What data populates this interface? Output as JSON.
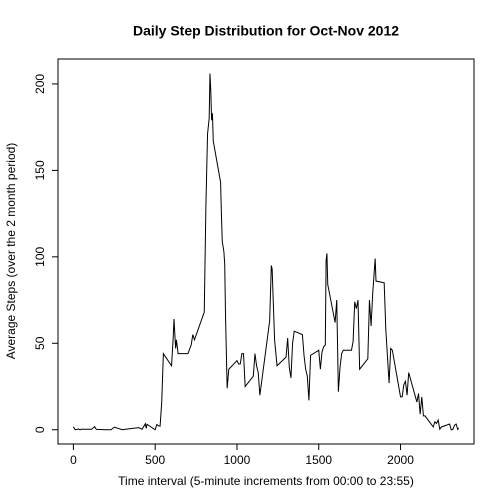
{
  "chart_data": {
    "type": "line",
    "title": "Daily Step Distribution for Oct-Nov 2012",
    "x_label": "Time interval (5-minute increments from 00:00 to 23:55)",
    "y_label": "Average Steps (over the 2 month period)",
    "x": [
      0,
      10,
      20,
      30,
      40,
      50,
      100,
      110,
      130,
      140,
      200,
      230,
      250,
      300,
      330,
      400,
      420,
      440,
      445,
      450,
      500,
      510,
      520,
      530,
      540,
      550,
      600,
      610,
      615,
      625,
      630,
      640,
      700,
      720,
      730,
      740,
      800,
      810,
      820,
      830,
      835,
      840,
      845,
      850,
      855,
      900,
      905,
      910,
      920,
      925,
      930,
      940,
      950,
      1000,
      1010,
      1020,
      1030,
      1040,
      1050,
      1100,
      1110,
      1120,
      1130,
      1140,
      1200,
      1210,
      1215,
      1230,
      1245,
      1300,
      1310,
      1320,
      1330,
      1340,
      1350,
      1400,
      1410,
      1420,
      1430,
      1440,
      1450,
      1500,
      1510,
      1520,
      1530,
      1540,
      1545,
      1550,
      1555,
      1600,
      1610,
      1620,
      1630,
      1640,
      1650,
      1700,
      1710,
      1720,
      1730,
      1740,
      1750,
      1800,
      1810,
      1820,
      1830,
      1845,
      1850,
      1900,
      1910,
      1930,
      1940,
      1950,
      2000,
      2010,
      2020,
      2030,
      2040,
      2050,
      2100,
      2110,
      2120,
      2130,
      2140,
      2150,
      2200,
      2210,
      2220,
      2230,
      2240,
      2250,
      2300,
      2310,
      2320,
      2330,
      2340,
      2350,
      2355
    ],
    "series": [
      {
        "name": "steps",
        "color": "#000000",
        "values": [
          1.7,
          0.1,
          0.1,
          0.5,
          0,
          0.3,
          0.3,
          0.2,
          1.8,
          0.2,
          0,
          0,
          1.5,
          0,
          0.4,
          1.2,
          0.3,
          3.5,
          0.8,
          3.1,
          0,
          3,
          2.3,
          2.1,
          16,
          44,
          37,
          53,
          64,
          47,
          52,
          44,
          44,
          49,
          55,
          52,
          68,
          129,
          171,
          180,
          206,
          196,
          179,
          183,
          167,
          143,
          124,
          109,
          103,
          96,
          66,
          24,
          35,
          40,
          38,
          38,
          44,
          44,
          25,
          31,
          44,
          37,
          33,
          20,
          63,
          95,
          93,
          52,
          37,
          42,
          53,
          36,
          30,
          50,
          57,
          55,
          43,
          35,
          31,
          17,
          43,
          46,
          35,
          45,
          48,
          49,
          98,
          102,
          84,
          62,
          75,
          22,
          36,
          44,
          46,
          46,
          51,
          74,
          70,
          75,
          35,
          41,
          75,
          60,
          79,
          99,
          86,
          85,
          58,
          27,
          47,
          46,
          19,
          19,
          26,
          28,
          20,
          33,
          16,
          21,
          9,
          19,
          8,
          8,
          1.6,
          4.6,
          3.6,
          5.6,
          0.3,
          1.6,
          3.3,
          0,
          0.2,
          2.6,
          3.3,
          0.2,
          1.1
        ]
      }
    ],
    "xlim": [
      -94.2,
      2449.2
    ],
    "ylim": [
      -8.25,
      214.42
    ],
    "xticks": [
      0,
      500,
      1000,
      1500,
      2000
    ],
    "yticks": [
      0,
      50,
      100,
      150,
      200
    ]
  }
}
